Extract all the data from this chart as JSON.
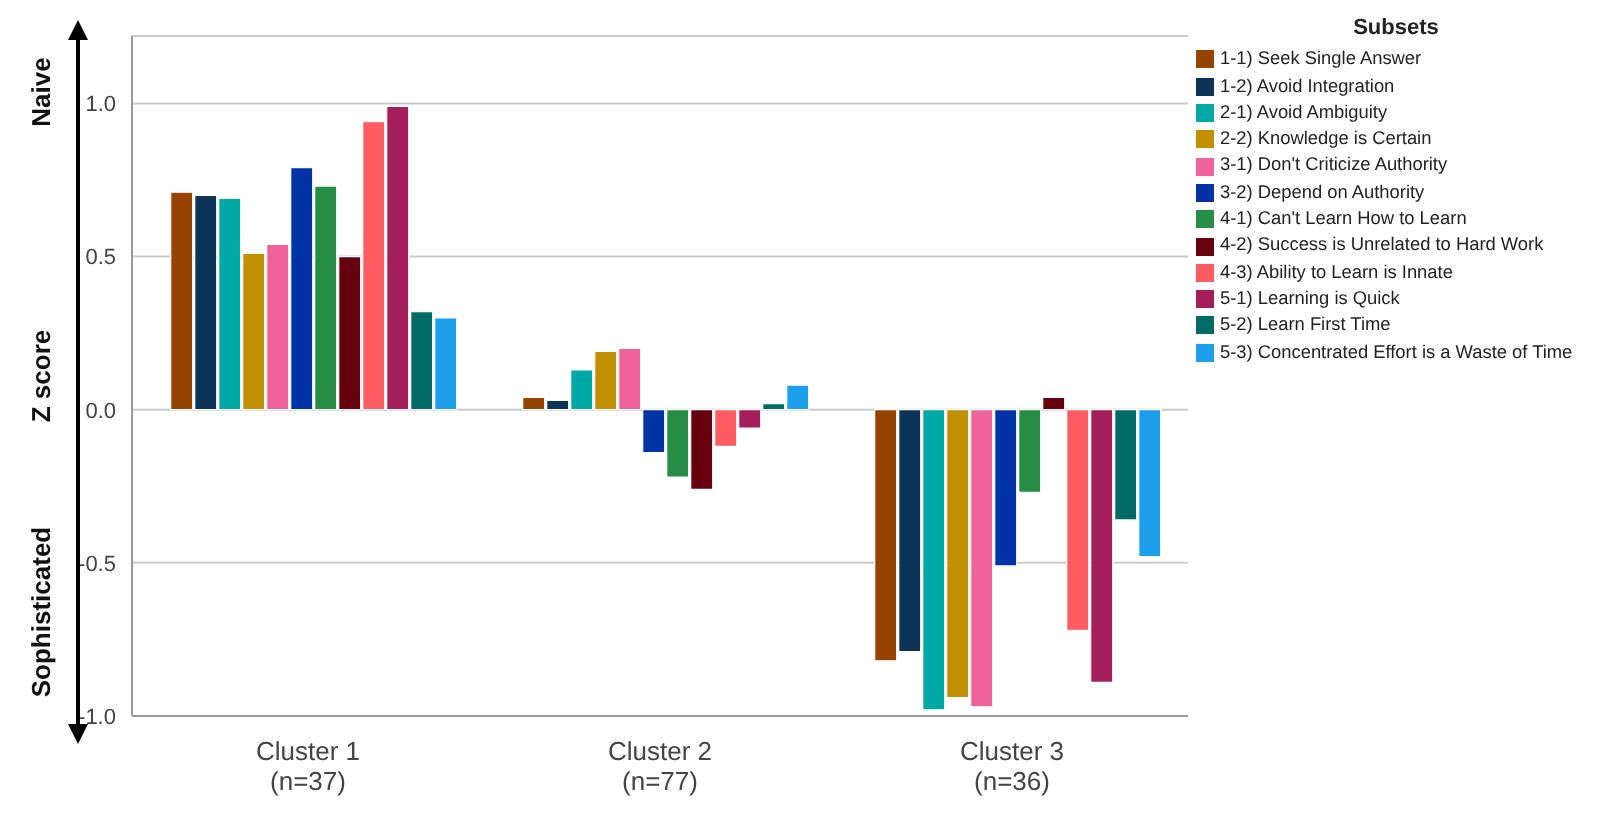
{
  "chart_data": {
    "type": "bar",
    "ylabel": "Z score",
    "legend_title": "Subsets",
    "categories": [
      "Cluster 1\n(n=37)",
      "Cluster 2\n(n=77)",
      "Cluster 3\n(n=36)"
    ],
    "series": [
      {
        "name": "1-1) Seek Single Answer",
        "color": "#964300",
        "values": [
          0.71,
          0.04,
          -0.82
        ]
      },
      {
        "name": "1-2) Avoid Integration",
        "color": "#0b3456",
        "values": [
          0.7,
          0.03,
          -0.79
        ]
      },
      {
        "name": "2-1) Avoid Ambiguity",
        "color": "#00a9a5",
        "values": [
          0.69,
          0.13,
          -0.98
        ]
      },
      {
        "name": "2-2) Knowledge is Certain",
        "color": "#c09000",
        "values": [
          0.51,
          0.19,
          -0.94
        ]
      },
      {
        "name": "3-1) Don't Criticize Authority",
        "color": "#f0629a",
        "values": [
          0.54,
          0.2,
          -0.97
        ]
      },
      {
        "name": "3-2) Depend on Authority",
        "color": "#0033a6",
        "values": [
          0.79,
          -0.14,
          -0.51
        ]
      },
      {
        "name": "4-1) Can't Learn How to Learn",
        "color": "#268c46",
        "values": [
          0.73,
          -0.22,
          -0.27
        ]
      },
      {
        "name": "4-2) Success is Unrelated to Hard Work",
        "color": "#65000f",
        "values": [
          0.5,
          -0.26,
          0.04
        ]
      },
      {
        "name": "4-3) Ability to Learn is Innate",
        "color": "#ff5c62",
        "values": [
          0.94,
          -0.12,
          -0.72
        ]
      },
      {
        "name": "5-1) Learning is Quick",
        "color": "#a51e5c",
        "values": [
          0.99,
          -0.06,
          -0.89
        ]
      },
      {
        "name": "5-2) Learn First Time",
        "color": "#006b66",
        "values": [
          0.32,
          0.02,
          -0.36
        ]
      },
      {
        "name": "5-3) Concentrated Effort is a Waste of Time",
        "color": "#1d9eea",
        "values": [
          0.3,
          0.08,
          -0.48
        ]
      }
    ],
    "ylim": [
      -1.0,
      1.22
    ],
    "yticks": [
      {
        "value": -1,
        "label": "-1.0"
      },
      {
        "value": -0.5,
        "label": "-0.5"
      },
      {
        "value": 0,
        "label": "0.0"
      },
      {
        "value": 0.5,
        "label": "0.5"
      },
      {
        "value": 1,
        "label": "1.0"
      }
    ],
    "grid": "y",
    "legend": "top right",
    "annotations": [
      "Naive",
      "Sophisticated"
    ]
  }
}
